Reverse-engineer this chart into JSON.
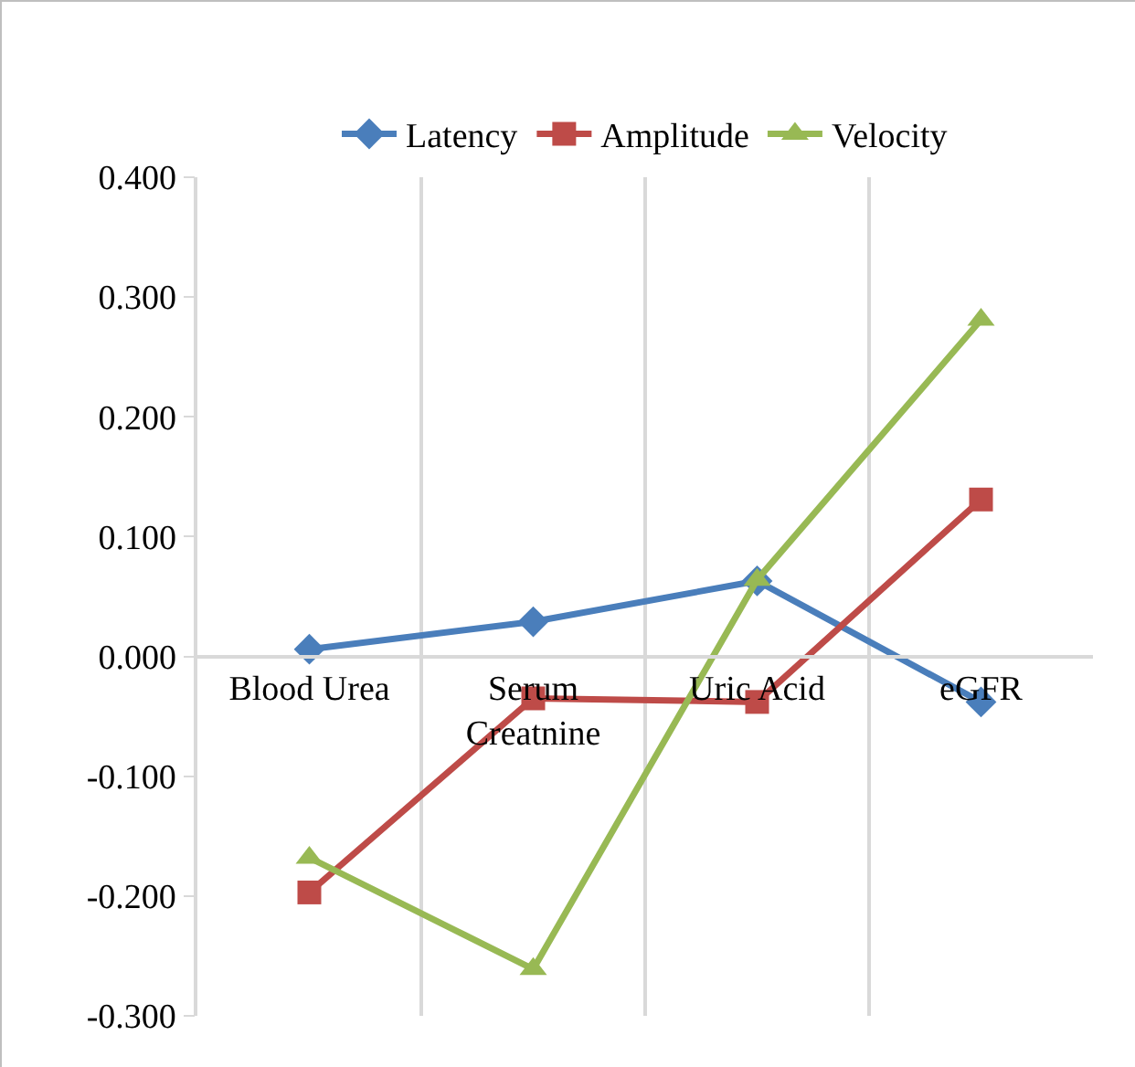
{
  "chart_data": {
    "type": "line",
    "categories": [
      "Blood Urea",
      "Serum Creatnine",
      "Uric Acid",
      "eGFR"
    ],
    "series": [
      {
        "name": "Latency",
        "color": "#4a7ebb",
        "marker": "diamond",
        "values": [
          0.006,
          0.029,
          0.063,
          -0.038
        ]
      },
      {
        "name": "Amplitude",
        "color": "#be4b48",
        "marker": "square",
        "values": [
          -0.197,
          -0.035,
          -0.038,
          0.131
        ]
      },
      {
        "name": "Velocity",
        "color": "#98b954",
        "marker": "triangle",
        "values": [
          -0.168,
          -0.261,
          0.064,
          0.281
        ]
      }
    ],
    "ylim": [
      -0.3,
      0.4
    ],
    "yticks": [
      {
        "value": -0.3,
        "label": "-0.300"
      },
      {
        "value": -0.2,
        "label": "-0.200"
      },
      {
        "value": -0.1,
        "label": "-0.100"
      },
      {
        "value": 0,
        "label": "0.000"
      },
      {
        "value": 0.1,
        "label": "0.100"
      },
      {
        "value": 0.2,
        "label": "0.200"
      },
      {
        "value": 0.3,
        "label": "0.300"
      },
      {
        "value": 0.4,
        "label": "0.400"
      }
    ],
    "grid": "x",
    "legend": "top",
    "line_style": "solid"
  }
}
